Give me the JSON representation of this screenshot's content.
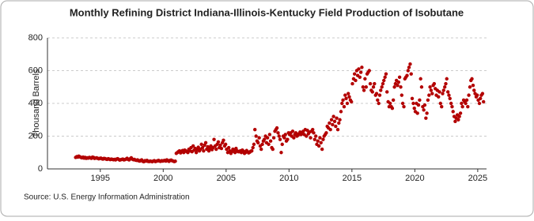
{
  "chart_data": {
    "type": "scatter",
    "title": "Monthly Refining District Indiana-Illinois-Kentucky Field Production of Isobutane",
    "y_label": "Thousand Barrels",
    "source": "Source: U.S. Energy Information Administration",
    "color": "#b30000",
    "xlim": [
      1990.8,
      2025.7
    ],
    "xticks": [
      1995,
      2000,
      2005,
      2010,
      2015,
      2020,
      2025
    ],
    "ylim": [
      0,
      800
    ],
    "yticks": [
      0,
      200,
      400,
      600,
      800
    ],
    "grid": true,
    "x": [
      1993.04,
      1993.13,
      1993.21,
      1993.29,
      1993.38,
      1993.46,
      1993.54,
      1993.63,
      1993.71,
      1993.79,
      1993.88,
      1993.96,
      1994.04,
      1994.13,
      1994.21,
      1994.29,
      1994.38,
      1994.46,
      1994.54,
      1994.63,
      1994.71,
      1994.79,
      1994.88,
      1994.96,
      1995.04,
      1995.13,
      1995.21,
      1995.29,
      1995.38,
      1995.46,
      1995.54,
      1995.63,
      1995.71,
      1995.79,
      1995.88,
      1995.96,
      1996.04,
      1996.13,
      1996.21,
      1996.29,
      1996.38,
      1996.46,
      1996.54,
      1996.63,
      1996.71,
      1996.79,
      1996.88,
      1996.96,
      1997.04,
      1997.13,
      1997.21,
      1997.29,
      1997.38,
      1997.46,
      1997.54,
      1997.63,
      1997.71,
      1997.79,
      1997.88,
      1997.96,
      1998.04,
      1998.13,
      1998.21,
      1998.29,
      1998.38,
      1998.46,
      1998.54,
      1998.63,
      1998.71,
      1998.79,
      1998.88,
      1998.96,
      1999.04,
      1999.13,
      1999.21,
      1999.29,
      1999.38,
      1999.46,
      1999.54,
      1999.63,
      1999.71,
      1999.79,
      1999.88,
      1999.96,
      2000.04,
      2000.13,
      2000.21,
      2000.29,
      2000.38,
      2000.46,
      2000.54,
      2000.63,
      2000.71,
      2000.79,
      2000.88,
      2000.96,
      2001.04,
      2001.13,
      2001.21,
      2001.29,
      2001.38,
      2001.46,
      2001.54,
      2001.63,
      2001.71,
      2001.79,
      2001.88,
      2001.96,
      2002.04,
      2002.13,
      2002.21,
      2002.29,
      2002.38,
      2002.46,
      2002.54,
      2002.63,
      2002.71,
      2002.79,
      2002.88,
      2002.96,
      2003.04,
      2003.13,
      2003.21,
      2003.29,
      2003.38,
      2003.46,
      2003.54,
      2003.63,
      2003.71,
      2003.79,
      2003.88,
      2003.96,
      2004.04,
      2004.13,
      2004.21,
      2004.29,
      2004.38,
      2004.46,
      2004.54,
      2004.63,
      2004.71,
      2004.79,
      2004.88,
      2004.96,
      2005.04,
      2005.13,
      2005.21,
      2005.29,
      2005.38,
      2005.46,
      2005.54,
      2005.63,
      2005.71,
      2005.79,
      2005.88,
      2005.96,
      2006.04,
      2006.13,
      2006.21,
      2006.29,
      2006.38,
      2006.46,
      2006.54,
      2006.63,
      2006.71,
      2006.79,
      2006.88,
      2006.96,
      2007.04,
      2007.13,
      2007.21,
      2007.29,
      2007.38,
      2007.46,
      2007.54,
      2007.63,
      2007.71,
      2007.79,
      2007.88,
      2007.96,
      2008.04,
      2008.13,
      2008.21,
      2008.29,
      2008.38,
      2008.46,
      2008.54,
      2008.63,
      2008.71,
      2008.79,
      2008.88,
      2008.96,
      2009.04,
      2009.13,
      2009.21,
      2009.29,
      2009.38,
      2009.46,
      2009.54,
      2009.63,
      2009.71,
      2009.79,
      2009.88,
      2009.96,
      2010.04,
      2010.13,
      2010.21,
      2010.29,
      2010.38,
      2010.46,
      2010.54,
      2010.63,
      2010.71,
      2010.79,
      2010.88,
      2010.96,
      2011.04,
      2011.13,
      2011.21,
      2011.29,
      2011.38,
      2011.46,
      2011.54,
      2011.63,
      2011.71,
      2011.79,
      2011.88,
      2011.96,
      2012.04,
      2012.13,
      2012.21,
      2012.29,
      2012.38,
      2012.46,
      2012.54,
      2012.63,
      2012.71,
      2012.79,
      2012.88,
      2012.96,
      2013.04,
      2013.13,
      2013.21,
      2013.29,
      2013.38,
      2013.46,
      2013.54,
      2013.63,
      2013.71,
      2013.79,
      2013.88,
      2013.96,
      2014.04,
      2014.13,
      2014.21,
      2014.29,
      2014.38,
      2014.46,
      2014.54,
      2014.63,
      2014.71,
      2014.79,
      2014.88,
      2014.96,
      2015.04,
      2015.13,
      2015.21,
      2015.29,
      2015.38,
      2015.46,
      2015.54,
      2015.63,
      2015.71,
      2015.79,
      2015.88,
      2015.96,
      2016.04,
      2016.13,
      2016.21,
      2016.29,
      2016.38,
      2016.46,
      2016.54,
      2016.63,
      2016.71,
      2016.79,
      2016.88,
      2016.96,
      2017.04,
      2017.13,
      2017.21,
      2017.29,
      2017.38,
      2017.46,
      2017.54,
      2017.63,
      2017.71,
      2017.79,
      2017.88,
      2017.96,
      2018.04,
      2018.13,
      2018.21,
      2018.29,
      2018.38,
      2018.46,
      2018.54,
      2018.63,
      2018.71,
      2018.79,
      2018.88,
      2018.96,
      2019.04,
      2019.13,
      2019.21,
      2019.29,
      2019.38,
      2019.46,
      2019.54,
      2019.63,
      2019.71,
      2019.79,
      2019.88,
      2019.96,
      2020.04,
      2020.13,
      2020.21,
      2020.29,
      2020.38,
      2020.46,
      2020.54,
      2020.63,
      2020.71,
      2020.79,
      2020.88,
      2020.96,
      2021.04,
      2021.13,
      2021.21,
      2021.29,
      2021.38,
      2021.46,
      2021.54,
      2021.63,
      2021.71,
      2021.79,
      2021.88,
      2021.96,
      2022.04,
      2022.13,
      2022.21,
      2022.29,
      2022.38,
      2022.46,
      2022.54,
      2022.63,
      2022.71,
      2022.79,
      2022.88,
      2022.96,
      2023.04,
      2023.13,
      2023.21,
      2023.29,
      2023.38,
      2023.46,
      2023.54,
      2023.63,
      2023.71,
      2023.79,
      2023.88,
      2023.96,
      2024.04,
      2024.13,
      2024.21,
      2024.29,
      2024.38,
      2024.46,
      2024.54,
      2024.63,
      2024.71,
      2024.79,
      2024.88,
      2024.96,
      2025.04,
      2025.13,
      2025.21,
      2025.29,
      2025.38,
      2025.46
    ],
    "values": [
      70,
      75,
      72,
      78,
      74,
      70,
      68,
      72,
      66,
      70,
      65,
      68,
      66,
      70,
      68,
      65,
      72,
      70,
      64,
      66,
      68,
      65,
      62,
      64,
      66,
      62,
      60,
      64,
      63,
      60,
      58,
      62,
      60,
      57,
      60,
      58,
      56,
      58,
      55,
      60,
      62,
      58,
      54,
      56,
      58,
      60,
      55,
      57,
      60,
      65,
      58,
      55,
      62,
      68,
      60,
      56,
      58,
      54,
      52,
      55,
      50,
      48,
      52,
      55,
      46,
      44,
      50,
      48,
      52,
      46,
      45,
      48,
      46,
      44,
      48,
      50,
      45,
      47,
      49,
      52,
      48,
      46,
      50,
      48,
      50,
      52,
      48,
      55,
      50,
      46,
      52,
      54,
      50,
      48,
      45,
      47,
      95,
      100,
      105,
      110,
      98,
      108,
      112,
      100,
      115,
      110,
      105,
      100,
      120,
      110,
      130,
      105,
      140,
      115,
      125,
      100,
      118,
      132,
      110,
      120,
      150,
      130,
      110,
      145,
      160,
      120,
      135,
      110,
      125,
      140,
      118,
      130,
      180,
      140,
      120,
      150,
      165,
      130,
      145,
      125,
      160,
      175,
      140,
      150,
      120,
      100,
      130,
      110,
      95,
      105,
      120,
      115,
      100,
      125,
      110,
      105,
      105,
      110,
      100,
      115,
      108,
      95,
      100,
      112,
      105,
      98,
      102,
      108,
      110,
      130,
      150,
      240,
      200,
      170,
      160,
      190,
      140,
      120,
      150,
      170,
      180,
      200,
      160,
      190,
      150,
      210,
      170,
      130,
      120,
      190,
      230,
      240,
      250,
      220,
      200,
      180,
      100,
      150,
      200,
      190,
      210,
      170,
      180,
      220,
      210,
      220,
      200,
      230,
      190,
      210,
      220,
      200,
      205,
      215,
      225,
      210,
      220,
      230,
      210,
      240,
      200,
      235,
      215,
      225,
      190,
      230,
      240,
      220,
      180,
      200,
      150,
      170,
      140,
      190,
      160,
      120,
      180,
      200,
      210,
      220,
      260,
      250,
      280,
      240,
      300,
      270,
      320,
      290,
      260,
      310,
      240,
      280,
      300,
      350,
      400,
      420,
      380,
      450,
      430,
      400,
      460,
      440,
      420,
      410,
      520,
      550,
      580,
      540,
      600,
      570,
      610,
      560,
      590,
      620,
      500,
      480,
      550,
      500,
      580,
      590,
      600,
      520,
      480,
      470,
      500,
      520,
      450,
      460,
      420,
      400,
      450,
      480,
      500,
      520,
      540,
      560,
      580,
      470,
      410,
      380,
      400,
      380,
      370,
      420,
      500,
      520,
      540,
      510,
      530,
      560,
      500,
      450,
      400,
      380,
      550,
      560,
      570,
      600,
      620,
      640,
      580,
      430,
      400,
      370,
      350,
      400,
      340,
      390,
      420,
      550,
      500,
      380,
      360,
      390,
      310,
      340,
      420,
      450,
      500,
      480,
      460,
      510,
      520,
      490,
      450,
      480,
      440,
      470,
      400,
      380,
      460,
      480,
      500,
      520,
      550,
      470,
      450,
      430,
      400,
      380,
      350,
      320,
      290,
      310,
      330,
      300,
      320,
      340,
      400,
      380,
      420,
      410,
      400,
      420,
      380,
      450,
      500,
      540,
      550,
      510,
      480,
      460,
      440,
      450,
      420,
      400,
      430,
      450,
      460,
      410
    ]
  }
}
